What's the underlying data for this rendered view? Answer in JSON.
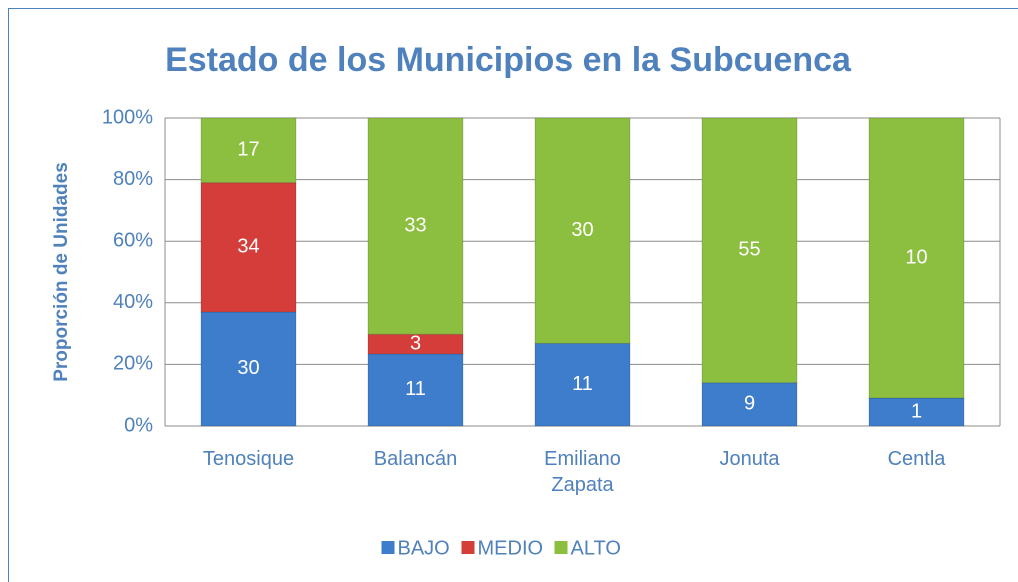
{
  "chart_data": {
    "type": "bar",
    "stacking": "percent",
    "title": "Estado de los Municipios en la Subcuenca",
    "y_label": "Proporción de Unidades",
    "categories": [
      "Tenosique",
      "Balancán",
      "Emiliano Zapata",
      "Jonuta",
      "Centla"
    ],
    "series": [
      {
        "name": "BAJO",
        "color": "#3d7dcc",
        "values": [
          30,
          11,
          11,
          9,
          1
        ]
      },
      {
        "name": "MEDIO",
        "color": "#d43d3a",
        "values": [
          34,
          3,
          null,
          null,
          null
        ]
      },
      {
        "name": "ALTO",
        "color": "#8cbf3f",
        "values": [
          17,
          33,
          30,
          55,
          10
        ]
      }
    ],
    "ylim": [
      0,
      100
    ],
    "yticks": [
      {
        "value": 0,
        "label": "0%"
      },
      {
        "value": 20,
        "label": "20%"
      },
      {
        "value": 40,
        "label": "40%"
      },
      {
        "value": 60,
        "label": "60%"
      },
      {
        "value": 80,
        "label": "80%"
      },
      {
        "value": 100,
        "label": "100%"
      }
    ],
    "grid": true,
    "legend": "bottom"
  }
}
